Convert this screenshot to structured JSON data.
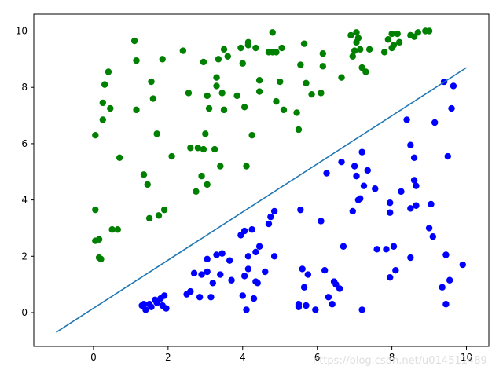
{
  "watermark": "https://blog.csdn.net/u014511489",
  "colors": {
    "class_a": "#008000",
    "class_b": "#0000ff",
    "line": "#1f77b4",
    "axes": "#000000",
    "background": "#ffffff"
  },
  "chart_data": {
    "type": "scatter",
    "title": "",
    "xlabel": "",
    "ylabel": "",
    "xlim": [
      -1.6,
      10.6
    ],
    "ylim": [
      -1.2,
      10.6
    ],
    "xticks": [
      0,
      2,
      4,
      6,
      8,
      10
    ],
    "yticks": [
      0,
      2,
      4,
      6,
      8,
      10
    ],
    "grid": false,
    "legend": "none",
    "series": [
      {
        "type": "scatter",
        "color": "#008000",
        "points": [
          [
            0.05,
            6.3
          ],
          [
            0.05,
            3.65
          ],
          [
            0.05,
            2.55
          ],
          [
            0.15,
            2.6
          ],
          [
            0.15,
            1.95
          ],
          [
            0.2,
            1.9
          ],
          [
            0.25,
            6.85
          ],
          [
            0.25,
            7.45
          ],
          [
            0.3,
            8.1
          ],
          [
            0.4,
            8.55
          ],
          [
            0.45,
            7.25
          ],
          [
            0.5,
            2.95
          ],
          [
            0.65,
            2.95
          ],
          [
            0.7,
            5.5
          ],
          [
            1.1,
            9.65
          ],
          [
            1.15,
            8.95
          ],
          [
            1.15,
            7.2
          ],
          [
            1.35,
            4.9
          ],
          [
            1.45,
            4.55
          ],
          [
            1.5,
            3.35
          ],
          [
            1.55,
            8.2
          ],
          [
            1.6,
            7.6
          ],
          [
            1.7,
            6.35
          ],
          [
            1.75,
            3.45
          ],
          [
            1.85,
            9.0
          ],
          [
            1.9,
            3.65
          ],
          [
            2.1,
            5.55
          ],
          [
            2.4,
            9.3
          ],
          [
            2.55,
            7.8
          ],
          [
            2.6,
            5.85
          ],
          [
            2.75,
            4.3
          ],
          [
            2.8,
            5.85
          ],
          [
            2.9,
            4.85
          ],
          [
            2.95,
            5.8
          ],
          [
            2.95,
            8.9
          ],
          [
            3.0,
            6.35
          ],
          [
            3.05,
            4.55
          ],
          [
            3.05,
            7.7
          ],
          [
            3.1,
            7.25
          ],
          [
            3.25,
            5.8
          ],
          [
            3.3,
            8.35
          ],
          [
            3.3,
            8.05
          ],
          [
            3.35,
            9.0
          ],
          [
            3.4,
            5.2
          ],
          [
            3.45,
            7.8
          ],
          [
            3.5,
            9.35
          ],
          [
            3.5,
            7.2
          ],
          [
            3.6,
            9.1
          ],
          [
            3.85,
            7.7
          ],
          [
            3.95,
            9.4
          ],
          [
            4.0,
            8.85
          ],
          [
            4.05,
            7.3
          ],
          [
            4.1,
            5.2
          ],
          [
            4.15,
            9.6
          ],
          [
            4.15,
            9.5
          ],
          [
            4.25,
            6.3
          ],
          [
            4.35,
            9.4
          ],
          [
            4.45,
            8.25
          ],
          [
            4.45,
            7.85
          ],
          [
            4.7,
            9.25
          ],
          [
            4.8,
            9.95
          ],
          [
            4.8,
            9.25
          ],
          [
            4.9,
            9.25
          ],
          [
            4.9,
            7.5
          ],
          [
            5.0,
            8.2
          ],
          [
            5.05,
            9.4
          ],
          [
            5.1,
            7.2
          ],
          [
            5.45,
            7.1
          ],
          [
            5.5,
            6.5
          ],
          [
            5.55,
            8.8
          ],
          [
            5.65,
            9.55
          ],
          [
            5.7,
            8.15
          ],
          [
            5.85,
            7.75
          ],
          [
            6.1,
            7.8
          ],
          [
            6.15,
            8.75
          ],
          [
            6.15,
            9.2
          ],
          [
            6.65,
            8.35
          ],
          [
            6.9,
            9.85
          ],
          [
            6.95,
            9.1
          ],
          [
            7.0,
            9.3
          ],
          [
            7.05,
            9.6
          ],
          [
            7.05,
            9.95
          ],
          [
            7.1,
            9.75
          ],
          [
            7.15,
            9.35
          ],
          [
            7.2,
            8.7
          ],
          [
            7.3,
            8.55
          ],
          [
            7.4,
            9.35
          ],
          [
            7.8,
            9.25
          ],
          [
            7.9,
            9.7
          ],
          [
            8.0,
            9.4
          ],
          [
            8.0,
            9.9
          ],
          [
            8.05,
            9.5
          ],
          [
            8.15,
            9.9
          ],
          [
            8.2,
            9.6
          ],
          [
            8.5,
            9.85
          ],
          [
            8.6,
            9.8
          ],
          [
            8.7,
            9.95
          ],
          [
            8.9,
            10.0
          ],
          [
            9.0,
            10.0
          ]
        ]
      },
      {
        "type": "scatter",
        "color": "#0000ff",
        "points": [
          [
            1.3,
            0.25
          ],
          [
            1.35,
            0.3
          ],
          [
            1.4,
            0.1
          ],
          [
            1.5,
            0.3
          ],
          [
            1.55,
            0.2
          ],
          [
            1.65,
            0.45
          ],
          [
            1.7,
            0.35
          ],
          [
            1.8,
            0.5
          ],
          [
            1.85,
            0.25
          ],
          [
            1.9,
            0.6
          ],
          [
            1.95,
            0.15
          ],
          [
            2.5,
            0.65
          ],
          [
            2.6,
            0.75
          ],
          [
            2.7,
            1.4
          ],
          [
            2.85,
            0.55
          ],
          [
            2.9,
            1.35
          ],
          [
            3.05,
            1.45
          ],
          [
            3.05,
            1.9
          ],
          [
            3.15,
            0.55
          ],
          [
            3.2,
            1.05
          ],
          [
            3.3,
            2.05
          ],
          [
            3.4,
            1.35
          ],
          [
            3.45,
            2.1
          ],
          [
            3.65,
            1.85
          ],
          [
            3.7,
            1.15
          ],
          [
            3.95,
            2.75
          ],
          [
            4.0,
            0.6
          ],
          [
            4.05,
            1.3
          ],
          [
            4.05,
            2.9
          ],
          [
            4.1,
            0.1
          ],
          [
            4.15,
            2.0
          ],
          [
            4.15,
            1.55
          ],
          [
            4.25,
            2.95
          ],
          [
            4.3,
            0.5
          ],
          [
            4.35,
            1.1
          ],
          [
            4.35,
            2.15
          ],
          [
            4.4,
            1.05
          ],
          [
            4.45,
            2.35
          ],
          [
            4.6,
            1.45
          ],
          [
            4.7,
            3.15
          ],
          [
            4.75,
            3.4
          ],
          [
            4.85,
            2.0
          ],
          [
            4.85,
            3.6
          ],
          [
            5.5,
            0.2
          ],
          [
            5.5,
            0.3
          ],
          [
            5.55,
            3.65
          ],
          [
            5.6,
            1.55
          ],
          [
            5.65,
            0.9
          ],
          [
            5.7,
            0.25
          ],
          [
            5.75,
            1.35
          ],
          [
            5.95,
            0.1
          ],
          [
            6.1,
            3.25
          ],
          [
            6.2,
            1.5
          ],
          [
            6.25,
            4.95
          ],
          [
            6.3,
            0.55
          ],
          [
            6.4,
            0.3
          ],
          [
            6.45,
            1.1
          ],
          [
            6.5,
            1.0
          ],
          [
            6.6,
            0.85
          ],
          [
            6.65,
            5.35
          ],
          [
            6.7,
            2.35
          ],
          [
            6.95,
            3.6
          ],
          [
            7.0,
            5.2
          ],
          [
            7.05,
            4.85
          ],
          [
            7.1,
            4.0
          ],
          [
            7.15,
            4.05
          ],
          [
            7.2,
            5.7
          ],
          [
            7.2,
            0.1
          ],
          [
            7.25,
            4.5
          ],
          [
            7.35,
            5.05
          ],
          [
            7.55,
            4.4
          ],
          [
            7.6,
            2.25
          ],
          [
            7.85,
            2.25
          ],
          [
            7.95,
            3.9
          ],
          [
            7.95,
            3.55
          ],
          [
            7.95,
            1.25
          ],
          [
            8.05,
            2.35
          ],
          [
            8.1,
            1.5
          ],
          [
            8.25,
            4.3
          ],
          [
            8.4,
            6.85
          ],
          [
            8.5,
            5.95
          ],
          [
            8.5,
            3.7
          ],
          [
            8.5,
            1.95
          ],
          [
            8.6,
            4.7
          ],
          [
            8.6,
            5.5
          ],
          [
            8.65,
            4.5
          ],
          [
            8.65,
            3.8
          ],
          [
            9.0,
            3.0
          ],
          [
            9.05,
            3.85
          ],
          [
            9.1,
            2.7
          ],
          [
            9.15,
            6.75
          ],
          [
            9.35,
            0.9
          ],
          [
            9.4,
            8.2
          ],
          [
            9.45,
            2.05
          ],
          [
            9.45,
            0.3
          ],
          [
            9.5,
            5.55
          ],
          [
            9.55,
            1.15
          ],
          [
            9.6,
            7.25
          ],
          [
            9.65,
            8.05
          ],
          [
            9.9,
            1.7
          ]
        ]
      },
      {
        "type": "line",
        "color": "#1f77b4",
        "x": [
          -1.0,
          10.0
        ],
        "y": [
          -0.7,
          8.7
        ]
      }
    ]
  }
}
